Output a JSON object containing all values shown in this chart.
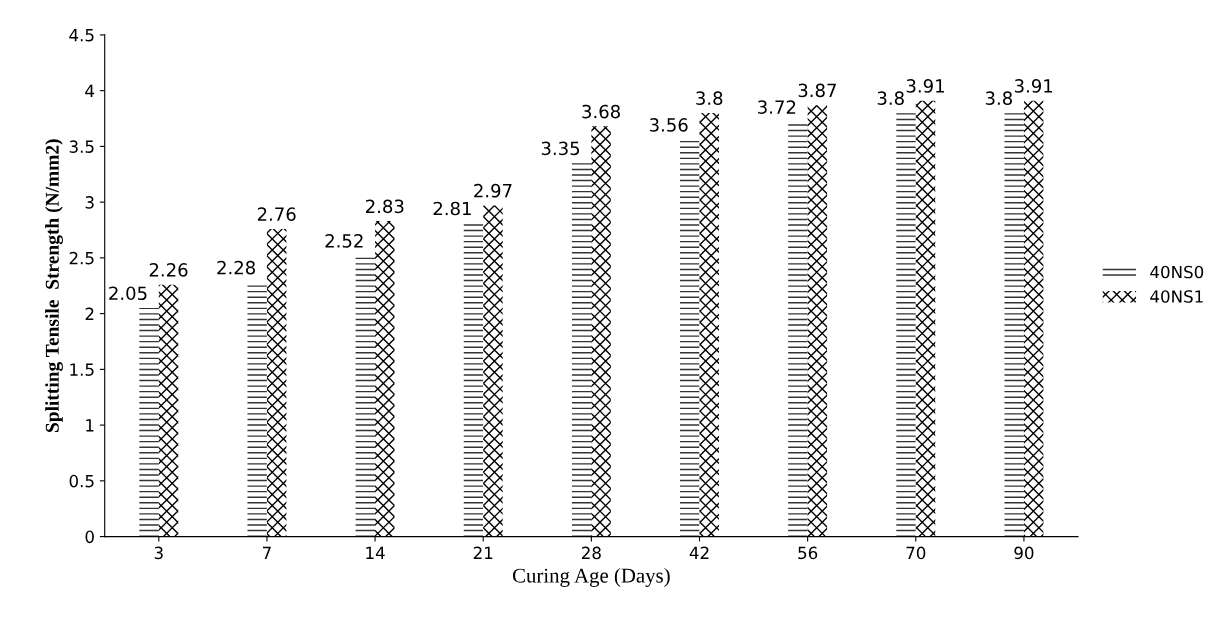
{
  "chart_data": {
    "type": "bar",
    "xlabel": "Curing Age (Days)",
    "ylabel": "Splitting Tensile  Strength (N/mm2)",
    "categories": [
      "3",
      "7",
      "14",
      "21",
      "28",
      "42",
      "56",
      "70",
      "90"
    ],
    "series": [
      {
        "name": "40NS0",
        "color": "#333333",
        "values": [
          2.05,
          2.28,
          2.52,
          2.81,
          3.35,
          3.56,
          3.72,
          3.8,
          3.8
        ]
      },
      {
        "name": "40NS1",
        "color": "#000000",
        "values": [
          2.26,
          2.76,
          2.83,
          2.97,
          3.68,
          3.8,
          3.87,
          3.91,
          3.91
        ]
      }
    ],
    "ylim": [
      0,
      4.5
    ],
    "yticks": [
      0,
      0.5,
      1,
      1.5,
      2,
      2.5,
      3,
      3.5,
      4,
      4.5
    ],
    "grid": false,
    "legend": "right",
    "data_labels": true
  }
}
